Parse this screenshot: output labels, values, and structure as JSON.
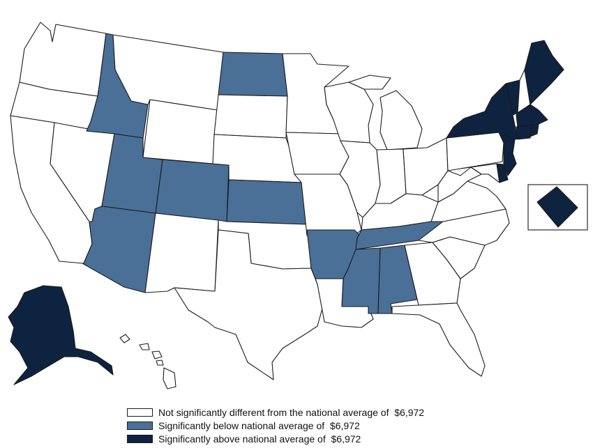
{
  "colors": {
    "not_significant": "#ffffff",
    "below": "#4a7098",
    "above": "#0e2340",
    "border": "#1a1a1a"
  },
  "legend": [
    {
      "category": "not_significant",
      "label": "Not significantly different from the national average of  $6,972"
    },
    {
      "category": "below",
      "label": "Significantly below national average of  $6,972"
    },
    {
      "category": "above",
      "label": "Significantly above national average of  $6,972"
    }
  ],
  "states": [
    {
      "name": "Washington",
      "category": "not_significant"
    },
    {
      "name": "Oregon",
      "category": "not_significant"
    },
    {
      "name": "California",
      "category": "not_significant"
    },
    {
      "name": "Nevada",
      "category": "not_significant"
    },
    {
      "name": "Idaho",
      "category": "below"
    },
    {
      "name": "Montana",
      "category": "not_significant"
    },
    {
      "name": "Wyoming",
      "category": "not_significant"
    },
    {
      "name": "Utah",
      "category": "below"
    },
    {
      "name": "Colorado",
      "category": "below"
    },
    {
      "name": "Arizona",
      "category": "below"
    },
    {
      "name": "New Mexico",
      "category": "not_significant"
    },
    {
      "name": "North Dakota",
      "category": "below"
    },
    {
      "name": "South Dakota",
      "category": "not_significant"
    },
    {
      "name": "Nebraska",
      "category": "not_significant"
    },
    {
      "name": "Kansas",
      "category": "below"
    },
    {
      "name": "Oklahoma",
      "category": "not_significant"
    },
    {
      "name": "Texas",
      "category": "not_significant"
    },
    {
      "name": "Minnesota",
      "category": "not_significant"
    },
    {
      "name": "Iowa",
      "category": "not_significant"
    },
    {
      "name": "Missouri",
      "category": "not_significant"
    },
    {
      "name": "Arkansas",
      "category": "below"
    },
    {
      "name": "Louisiana",
      "category": "not_significant"
    },
    {
      "name": "Wisconsin",
      "category": "not_significant"
    },
    {
      "name": "Illinois",
      "category": "not_significant"
    },
    {
      "name": "Michigan",
      "category": "not_significant"
    },
    {
      "name": "Indiana",
      "category": "not_significant"
    },
    {
      "name": "Ohio",
      "category": "not_significant"
    },
    {
      "name": "Kentucky",
      "category": "not_significant"
    },
    {
      "name": "Tennessee",
      "category": "below"
    },
    {
      "name": "Mississippi",
      "category": "below"
    },
    {
      "name": "Alabama",
      "category": "below"
    },
    {
      "name": "Georgia",
      "category": "not_significant"
    },
    {
      "name": "Florida",
      "category": "not_significant"
    },
    {
      "name": "South Carolina",
      "category": "not_significant"
    },
    {
      "name": "North Carolina",
      "category": "not_significant"
    },
    {
      "name": "Virginia",
      "category": "not_significant"
    },
    {
      "name": "West Virginia",
      "category": "not_significant"
    },
    {
      "name": "Pennsylvania",
      "category": "not_significant"
    },
    {
      "name": "New York",
      "category": "above"
    },
    {
      "name": "New Jersey",
      "category": "above"
    },
    {
      "name": "Delaware",
      "category": "above"
    },
    {
      "name": "Maryland",
      "category": "not_significant"
    },
    {
      "name": "Vermont",
      "category": "above"
    },
    {
      "name": "New Hampshire",
      "category": "not_significant"
    },
    {
      "name": "Maine",
      "category": "above"
    },
    {
      "name": "Massachusetts",
      "category": "above"
    },
    {
      "name": "Connecticut",
      "category": "above"
    },
    {
      "name": "Rhode Island",
      "category": "above"
    },
    {
      "name": "Alaska",
      "category": "above"
    },
    {
      "name": "Hawaii",
      "category": "not_significant"
    },
    {
      "name": "District of Columbia",
      "category": "above"
    }
  ]
}
